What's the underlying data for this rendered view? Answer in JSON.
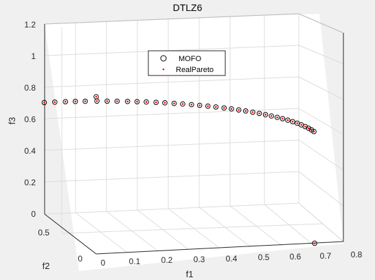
{
  "figure": {
    "title": "DTLZ6",
    "background": "#f0f0f0",
    "axes_background": "#ffffff"
  },
  "chart_data": {
    "type": "scatter3d",
    "title": "DTLZ6",
    "xlabel": "f1",
    "ylabel": "f2",
    "zlabel": "f3",
    "xlim": [
      0,
      0.8
    ],
    "ylim": [
      0,
      0.7
    ],
    "zlim": [
      0,
      1.2
    ],
    "xticks": [
      "0",
      "0.1",
      "0.2",
      "0.3",
      "0.4",
      "0.5",
      "0.6",
      "0.7",
      "0.8"
    ],
    "yticks": [
      "0",
      "0.5"
    ],
    "zticks": [
      "0",
      "0.2",
      "0.4",
      "0.6",
      "0.8",
      "1",
      "1.2"
    ],
    "grid": true,
    "legend": {
      "position": "top-center"
    },
    "series": [
      {
        "name": "MOFO",
        "marker": "circle-open",
        "color": "#000000",
        "points": [
          [
            0.0,
            0.707,
            0.707
          ],
          [
            0.034,
            0.706,
            0.707
          ],
          [
            0.068,
            0.704,
            0.707
          ],
          [
            0.099,
            0.7,
            0.707
          ],
          [
            0.13,
            0.695,
            0.707
          ],
          [
            0.166,
            0.688,
            0.707
          ],
          [
            0.197,
            0.679,
            0.707
          ],
          [
            0.227,
            0.67,
            0.707
          ],
          [
            0.258,
            0.658,
            0.707
          ],
          [
            0.286,
            0.646,
            0.707
          ],
          [
            0.313,
            0.634,
            0.707
          ],
          [
            0.341,
            0.619,
            0.707
          ],
          [
            0.366,
            0.605,
            0.707
          ],
          [
            0.392,
            0.588,
            0.707
          ],
          [
            0.416,
            0.572,
            0.707
          ],
          [
            0.44,
            0.553,
            0.707
          ],
          [
            0.462,
            0.535,
            0.707
          ],
          [
            0.484,
            0.515,
            0.707
          ],
          [
            0.505,
            0.495,
            0.707
          ],
          [
            0.526,
            0.472,
            0.707
          ],
          [
            0.545,
            0.451,
            0.707
          ],
          [
            0.563,
            0.428,
            0.707
          ],
          [
            0.58,
            0.405,
            0.707
          ],
          [
            0.597,
            0.38,
            0.707
          ],
          [
            0.612,
            0.354,
            0.707
          ],
          [
            0.626,
            0.328,
            0.707
          ],
          [
            0.639,
            0.302,
            0.707
          ],
          [
            0.651,
            0.274,
            0.707
          ],
          [
            0.662,
            0.248,
            0.707
          ],
          [
            0.672,
            0.219,
            0.707
          ],
          [
            0.681,
            0.19,
            0.707
          ],
          [
            0.689,
            0.161,
            0.707
          ],
          [
            0.695,
            0.131,
            0.707
          ],
          [
            0.7,
            0.1,
            0.707
          ],
          [
            0.704,
            0.07,
            0.707
          ],
          [
            0.706,
            0.04,
            0.707
          ],
          [
            0.707,
            0.01,
            0.707
          ],
          [
            0.0,
            0.0,
            1.0
          ],
          [
            0.707,
            0.0,
            0.0
          ]
        ]
      },
      {
        "name": "RealPareto",
        "marker": "dot",
        "color": "#ff0000",
        "points": []
      }
    ]
  }
}
